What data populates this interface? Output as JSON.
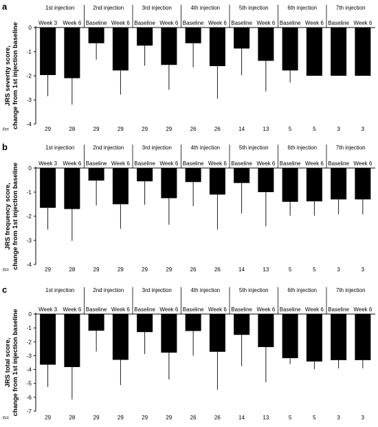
{
  "injections": [
    "1st injection",
    "2nd injection",
    "3rd injection",
    "4th injection",
    "5th injection",
    "6th injection",
    "7th injection"
  ],
  "timepoints": [
    "Week 3",
    "Week 6",
    "Baseline",
    "Week 6",
    "Baseline",
    "Week 6",
    "Baseline",
    "Week 6",
    "Baseline",
    "Week 6",
    "Baseline",
    "Week 6",
    "Baseline",
    "Week 6"
  ],
  "n_label": "n=",
  "n_values": [
    "29",
    "28",
    "29",
    "29",
    "29",
    "29",
    "26",
    "26",
    "14",
    "13",
    "5",
    "5",
    "3",
    "3"
  ],
  "chart_data": [
    {
      "type": "bar",
      "panel_label": "a",
      "ylabel": "JRS severity score,",
      "ylabel2": "change from 1st injection baseline",
      "ylim": [
        -4,
        0
      ],
      "yticks": [
        "0",
        "-1",
        "-2",
        "-3",
        "-4"
      ],
      "values": [
        -1.97,
        -2.1,
        -0.65,
        -1.78,
        -0.75,
        -1.55,
        -0.65,
        -1.6,
        -0.87,
        -1.38,
        -1.78,
        -2.0,
        -2.0,
        -2.0
      ],
      "error_low": [
        -2.85,
        -3.2,
        -1.33,
        -2.78,
        -1.58,
        -2.58,
        -1.65,
        -2.95,
        -1.98,
        -2.65,
        -2.28,
        -2.0,
        -2.0,
        -2.0
      ]
    },
    {
      "type": "bar",
      "panel_label": "b",
      "ylabel": "JRS frequency score,",
      "ylabel2": "change from 1st injection baseline",
      "ylim": [
        -4,
        0
      ],
      "yticks": [
        "0",
        "-1",
        "-2",
        "-3",
        "-4"
      ],
      "values": [
        -1.65,
        -1.7,
        -0.52,
        -1.5,
        -0.55,
        -1.25,
        -0.58,
        -1.1,
        -0.62,
        -1.0,
        -1.4,
        -1.38,
        -1.3,
        -1.3
      ],
      "error_low": [
        -2.55,
        -3.02,
        -1.55,
        -2.52,
        -1.52,
        -2.35,
        -1.58,
        -2.55,
        -1.88,
        -2.42,
        -1.98,
        -1.98,
        -1.92,
        -1.92
      ]
    },
    {
      "type": "bar",
      "panel_label": "c",
      "ylabel": "JRS total score,",
      "ylabel2": "change from 1st injection baseline",
      "ylim": [
        -7,
        0
      ],
      "yticks": [
        "0",
        "-1",
        "-2",
        "-3",
        "-4",
        "-5",
        "-6",
        "-7"
      ],
      "values": [
        -3.65,
        -3.82,
        -1.2,
        -3.3,
        -1.3,
        -2.78,
        -1.22,
        -2.72,
        -1.5,
        -2.38,
        -3.18,
        -3.42,
        -3.32,
        -3.32
      ],
      "error_low": [
        -5.25,
        -6.15,
        -2.7,
        -5.12,
        -2.88,
        -4.72,
        -3.0,
        -5.45,
        -3.75,
        -4.92,
        -3.6,
        -3.98,
        -3.92,
        -3.92
      ]
    }
  ]
}
